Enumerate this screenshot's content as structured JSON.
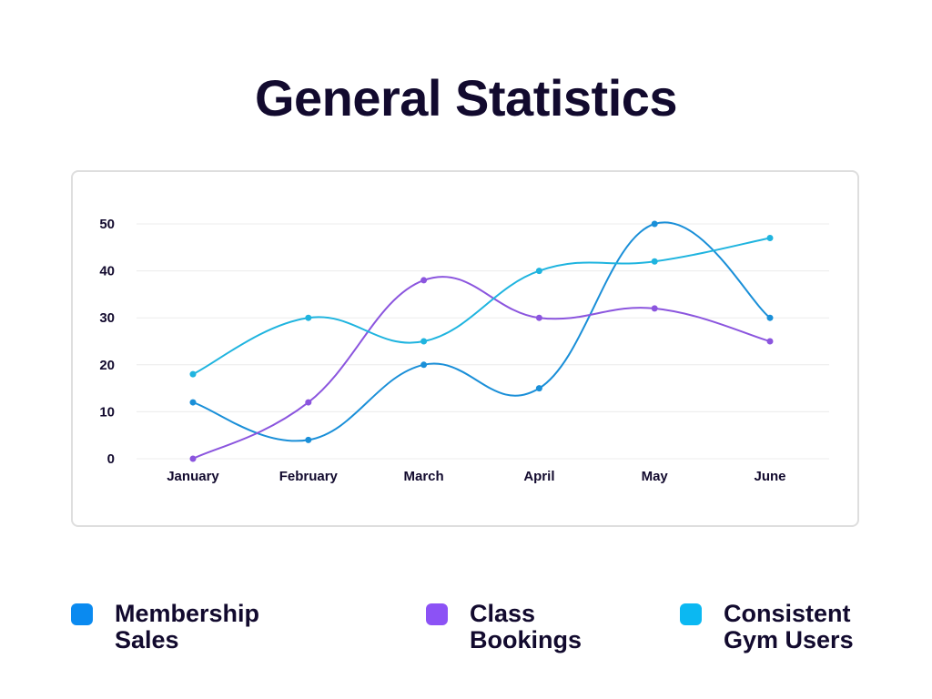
{
  "title": "General Statistics",
  "chart_data": {
    "type": "line",
    "title": "",
    "xlabel": "",
    "ylabel": "",
    "categories": [
      "January",
      "February",
      "March",
      "April",
      "May",
      "June"
    ],
    "ylim": [
      0,
      50
    ],
    "yticks": [
      0,
      10,
      20,
      30,
      40,
      50
    ],
    "grid": true,
    "curve": "smooth",
    "legend_position": "bottom",
    "series": [
      {
        "name": "Membership Sales",
        "color": "#1a8fd8",
        "values": [
          12,
          4,
          20,
          15,
          50,
          30
        ]
      },
      {
        "name": "Class Bookings",
        "color": "#8b55de",
        "values": [
          0,
          12,
          38,
          30,
          32,
          25
        ]
      },
      {
        "name": "Consistent Gym Users",
        "color": "#1fb4df",
        "values": [
          18,
          30,
          25,
          40,
          42,
          47
        ]
      }
    ]
  },
  "legend": [
    {
      "line1": "Membership",
      "line2": "Sales",
      "color": "#0a8af0"
    },
    {
      "line1": "Class",
      "line2": "Bookings",
      "color": "#8c52f5"
    },
    {
      "line1": "Consistent",
      "line2": "Gym Users",
      "color": "#0bb8f2"
    }
  ]
}
